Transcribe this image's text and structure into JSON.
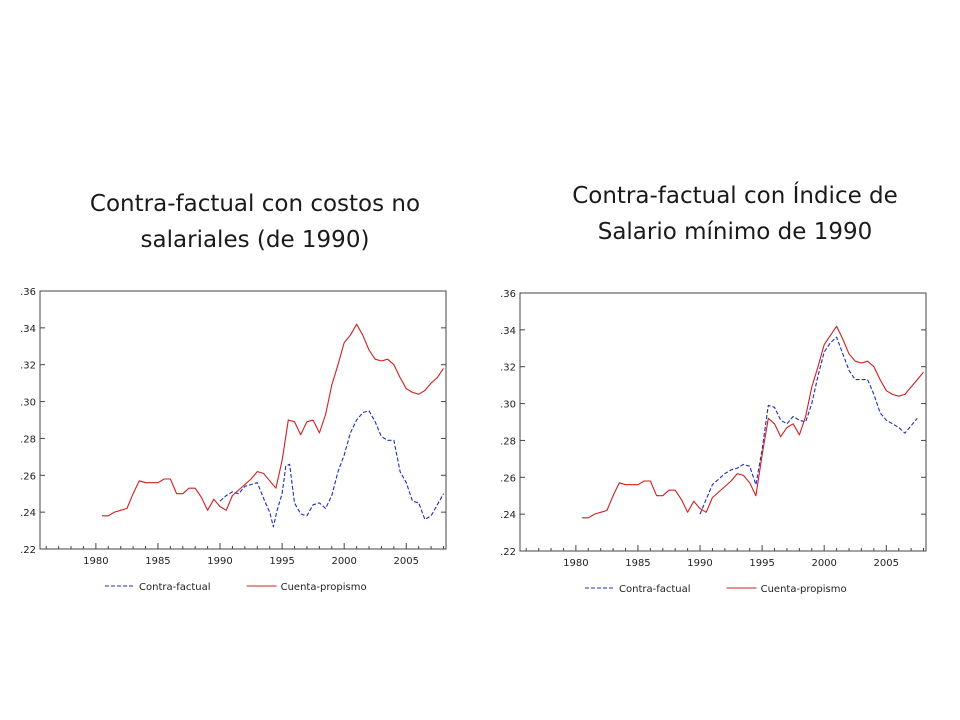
{
  "captions": {
    "left": [
      "Contra-factual con costos no",
      "salariales (de 1990)"
    ],
    "right": [
      "Contra-factual con Índice de",
      "Salario mínimo de 1990"
    ]
  },
  "colors": {
    "contrafactual": "#1f2fb8",
    "cuenta": "#d21f1f",
    "axis": "#444444"
  },
  "chart_data": [
    {
      "type": "line",
      "title": "Contra-factual con costos no salariales (de 1990)",
      "xlim": [
        1975.5,
        2008.2
      ],
      "ylim": [
        0.22,
        0.36
      ],
      "x_ticks": [
        "1980",
        "1985",
        "1990",
        "1995",
        "2000",
        "2005"
      ],
      "y_ticks": [
        ".22",
        ".24",
        ".26",
        ".28",
        ".30",
        ".32",
        ".34",
        ".36"
      ],
      "legend": "bottom",
      "series": [
        {
          "name": "Contra-factual",
          "style": "dashed",
          "x": [
            1990.0,
            1990.5,
            1991.0,
            1991.5,
            1992.0,
            1992.5,
            1993.0,
            1993.3,
            1993.6,
            1994.0,
            1994.3,
            1994.6,
            1995.0,
            1995.3,
            1995.6,
            1996.0,
            1996.5,
            1997.0,
            1997.5,
            1998.0,
            1998.5,
            1999.0,
            1999.5,
            2000.0,
            2000.5,
            2001.0,
            2001.5,
            2002.0,
            2002.5,
            2003.0,
            2003.5,
            2004.0,
            2004.5,
            2005.0,
            2005.5,
            2006.0,
            2006.5,
            2007.0,
            2007.5,
            2008.0
          ],
          "values": [
            0.246,
            0.249,
            0.251,
            0.25,
            0.254,
            0.255,
            0.256,
            0.251,
            0.246,
            0.24,
            0.232,
            0.241,
            0.25,
            0.265,
            0.266,
            0.245,
            0.239,
            0.238,
            0.244,
            0.245,
            0.242,
            0.249,
            0.262,
            0.271,
            0.283,
            0.29,
            0.294,
            0.295,
            0.289,
            0.281,
            0.279,
            0.279,
            0.262,
            0.256,
            0.246,
            0.245,
            0.236,
            0.238,
            0.244,
            0.25
          ]
        },
        {
          "name": "Cuenta-propismo",
          "style": "solid",
          "x": [
            1980.5,
            1981.0,
            1981.5,
            1982.0,
            1982.5,
            1983.0,
            1983.5,
            1984.0,
            1984.5,
            1985.0,
            1985.5,
            1986.0,
            1986.5,
            1987.0,
            1987.5,
            1988.0,
            1988.5,
            1989.0,
            1989.5,
            1990.0,
            1990.5,
            1991.0,
            1991.5,
            1992.0,
            1992.5,
            1993.0,
            1993.5,
            1994.0,
            1994.5,
            1995.0,
            1995.5,
            1996.0,
            1996.5,
            1997.0,
            1997.5,
            1998.0,
            1998.5,
            1999.0,
            1999.5,
            2000.0,
            2000.5,
            2001.0,
            2001.5,
            2002.0,
            2002.5,
            2003.0,
            2003.5,
            2004.0,
            2004.5,
            2005.0,
            2005.5,
            2006.0,
            2006.5,
            2007.0,
            2007.5,
            2008.0
          ],
          "values": [
            0.238,
            0.238,
            0.24,
            0.241,
            0.242,
            0.25,
            0.257,
            0.256,
            0.256,
            0.256,
            0.258,
            0.258,
            0.25,
            0.25,
            0.253,
            0.253,
            0.248,
            0.241,
            0.247,
            0.243,
            0.241,
            0.249,
            0.252,
            0.255,
            0.258,
            0.262,
            0.261,
            0.257,
            0.253,
            0.268,
            0.29,
            0.289,
            0.282,
            0.289,
            0.29,
            0.283,
            0.293,
            0.309,
            0.32,
            0.332,
            0.336,
            0.342,
            0.336,
            0.328,
            0.323,
            0.322,
            0.323,
            0.32,
            0.313,
            0.307,
            0.305,
            0.304,
            0.306,
            0.31,
            0.313,
            0.318
          ]
        }
      ]
    },
    {
      "type": "line",
      "title": "Contra-factual con Índice de Salario mínimo de 1990",
      "xlim": [
        1975.5,
        2008.2
      ],
      "ylim": [
        0.22,
        0.36
      ],
      "x_ticks": [
        "1980",
        "1985",
        "1990",
        "1995",
        "2000",
        "2005"
      ],
      "y_ticks": [
        ".22",
        ".24",
        ".26",
        ".28",
        ".30",
        ".32",
        ".34",
        ".36"
      ],
      "legend": "bottom",
      "series": [
        {
          "name": "Contra-factual",
          "style": "dashed",
          "x": [
            1990.0,
            1990.5,
            1991.0,
            1991.5,
            1992.0,
            1992.5,
            1993.0,
            1993.5,
            1994.0,
            1994.5,
            1995.0,
            1995.5,
            1996.0,
            1996.5,
            1997.0,
            1997.5,
            1998.0,
            1998.5,
            1999.0,
            1999.5,
            2000.0,
            2000.5,
            2001.0,
            2001.5,
            2002.0,
            2002.5,
            2003.0,
            2003.5,
            2004.0,
            2004.5,
            2005.0,
            2005.5,
            2006.0,
            2006.5,
            2007.0,
            2007.5
          ],
          "values": [
            0.24,
            0.248,
            0.256,
            0.259,
            0.262,
            0.264,
            0.265,
            0.267,
            0.266,
            0.256,
            0.275,
            0.299,
            0.298,
            0.291,
            0.289,
            0.293,
            0.291,
            0.29,
            0.3,
            0.315,
            0.328,
            0.333,
            0.336,
            0.327,
            0.318,
            0.313,
            0.313,
            0.313,
            0.305,
            0.295,
            0.291,
            0.289,
            0.287,
            0.284,
            0.288,
            0.292
          ]
        },
        {
          "name": "Cuenta-propismo",
          "style": "solid",
          "x": [
            1980.5,
            1981.0,
            1981.5,
            1982.0,
            1982.5,
            1983.0,
            1983.5,
            1984.0,
            1984.5,
            1985.0,
            1985.5,
            1986.0,
            1986.5,
            1987.0,
            1987.5,
            1988.0,
            1988.5,
            1989.0,
            1989.5,
            1990.0,
            1990.5,
            1991.0,
            1991.5,
            1992.0,
            1992.5,
            1993.0,
            1993.5,
            1994.0,
            1994.5,
            1995.0,
            1995.5,
            1996.0,
            1996.5,
            1997.0,
            1997.5,
            1998.0,
            1998.5,
            1999.0,
            1999.5,
            2000.0,
            2000.5,
            2001.0,
            2001.5,
            2002.0,
            2002.5,
            2003.0,
            2003.5,
            2004.0,
            2004.5,
            2005.0,
            2005.5,
            2006.0,
            2006.5,
            2007.0,
            2007.5,
            2008.0
          ],
          "values": [
            0.238,
            0.238,
            0.24,
            0.241,
            0.242,
            0.25,
            0.257,
            0.256,
            0.256,
            0.256,
            0.258,
            0.258,
            0.25,
            0.25,
            0.253,
            0.253,
            0.248,
            0.241,
            0.247,
            0.243,
            0.241,
            0.249,
            0.252,
            0.255,
            0.258,
            0.262,
            0.261,
            0.257,
            0.25,
            0.272,
            0.292,
            0.289,
            0.282,
            0.287,
            0.289,
            0.283,
            0.293,
            0.309,
            0.32,
            0.332,
            0.337,
            0.342,
            0.335,
            0.327,
            0.323,
            0.322,
            0.323,
            0.32,
            0.313,
            0.307,
            0.305,
            0.304,
            0.305,
            0.309,
            0.313,
            0.317
          ]
        }
      ]
    }
  ]
}
